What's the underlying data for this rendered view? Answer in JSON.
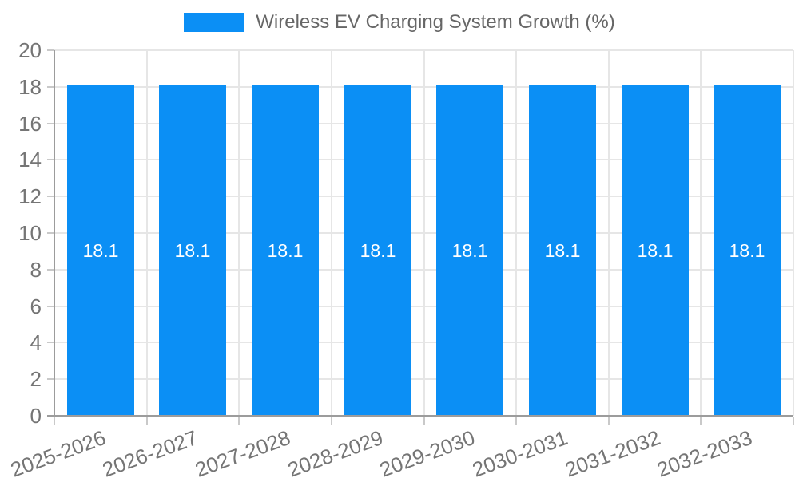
{
  "chart_data": {
    "type": "bar",
    "title": "Wireless EV Charging System Growth (%)",
    "categories": [
      "2025-2026",
      "2026-2027",
      "2027-2028",
      "2028-2029",
      "2029-2030",
      "2030-2031",
      "2031-2032",
      "2032-2033"
    ],
    "values": [
      18.1,
      18.1,
      18.1,
      18.1,
      18.1,
      18.1,
      18.1,
      18.1
    ],
    "bar_labels": [
      "18.1",
      "18.1",
      "18.1",
      "18.1",
      "18.1",
      "18.1",
      "18.1",
      "18.1"
    ],
    "xlabel": "",
    "ylabel": "",
    "ylim": [
      0,
      20
    ],
    "ytick_step": 2,
    "ytick_labels": [
      "0",
      "2",
      "4",
      "6",
      "8",
      "10",
      "12",
      "14",
      "16",
      "18",
      "20"
    ],
    "grid": true,
    "legend_position": "top",
    "colors": {
      "bar": "#0b8ff5",
      "grid": "#e6e6e6",
      "axis": "#9c9c9c",
      "tick": "#c9c9c9",
      "tick_text": "#757575",
      "legend_text": "#666666",
      "bar_value_text": "#ffffff"
    }
  }
}
